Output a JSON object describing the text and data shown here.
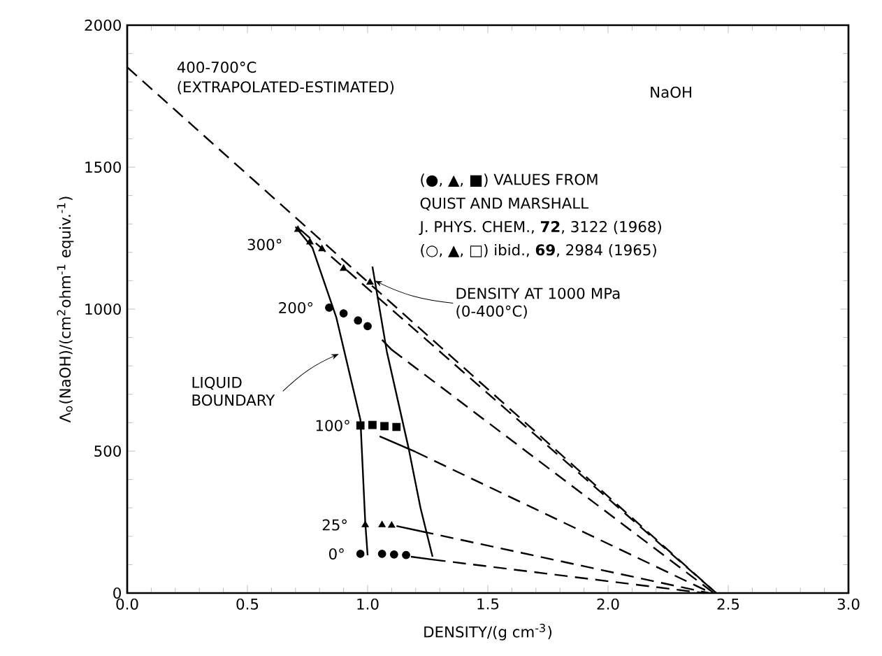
{
  "chart_data": {
    "type": "scatter",
    "xlabel": "DENSITY/(g cm$^{-3}$)",
    "ylabel": "Λ$_{o}$(NaOH)/(cm$^{2}$ohm$^{-1}$ equiv.$^{-1}$)",
    "xlim": [
      0,
      3.0
    ],
    "ylim": [
      0,
      2000
    ],
    "xticks": [
      {
        "value": 0,
        "label": "0.0"
      },
      {
        "value": 0.5,
        "label": "0.5"
      },
      {
        "value": 1,
        "label": "1.0"
      },
      {
        "value": 1.5,
        "label": "1.5"
      },
      {
        "value": 2,
        "label": "2.0"
      },
      {
        "value": 2.5,
        "label": "2.5"
      },
      {
        "value": 3,
        "label": "3.0"
      }
    ],
    "yticks": [
      0,
      500,
      1000,
      1500,
      2000
    ],
    "series": [
      {
        "marker": "circle",
        "color": "#000000",
        "x": [
          0.97,
          1.06,
          1.11,
          1.16
        ],
        "values": [
          138,
          138,
          136,
          134
        ]
      },
      {
        "marker": "triangle",
        "color": "#000000",
        "x": [
          0.99,
          1.06,
          1.1
        ],
        "values": [
          240,
          240,
          238
        ]
      },
      {
        "marker": "square",
        "color": "#000000",
        "x": [
          0.97,
          1.02,
          1.07,
          1.12
        ],
        "values": [
          590,
          592,
          588,
          585
        ]
      },
      {
        "marker": "circle",
        "color": "#000000",
        "x": [
          0.84,
          0.9,
          0.96,
          1.0
        ],
        "values": [
          1005,
          985,
          960,
          940
        ]
      },
      {
        "marker": "triangle",
        "color": "#000000",
        "x": [
          0.71,
          0.76,
          0.81,
          0.9,
          1.01
        ],
        "values": [
          1280,
          1236,
          1212,
          1143,
          1094
        ]
      },
      {
        "type": "line",
        "marker": "none",
        "line_style": "solid",
        "color": "#000000",
        "x": [
          1.18,
          1.27
        ],
        "values": [
          128,
          118
        ]
      },
      {
        "type": "line",
        "marker": "none",
        "line_style": "dashed",
        "color": "#000000",
        "x": [
          1.27,
          2.4
        ],
        "values": [
          118,
          0
        ]
      },
      {
        "type": "line",
        "marker": "none",
        "line_style": "solid",
        "color": "#000000",
        "x": [
          1.12,
          1.22
        ],
        "values": [
          236,
          218
        ]
      },
      {
        "type": "line",
        "marker": "none",
        "line_style": "dashed",
        "color": "#000000",
        "x": [
          1.22,
          2.42
        ],
        "values": [
          218,
          0
        ]
      },
      {
        "type": "line",
        "marker": "none",
        "line_style": "solid",
        "color": "#000000",
        "x": [
          1.05,
          1.2
        ],
        "values": [
          552,
          497
        ]
      },
      {
        "type": "line",
        "marker": "none",
        "line_style": "dashed",
        "color": "#000000",
        "x": [
          1.2,
          2.43
        ],
        "values": [
          497,
          0
        ]
      },
      {
        "type": "line",
        "marker": "none",
        "line_style": "solid",
        "color": "#000000",
        "x": [
          1.06,
          1.1
        ],
        "values": [
          892,
          857
        ]
      },
      {
        "type": "line",
        "marker": "none",
        "line_style": "dashed",
        "color": "#000000",
        "x": [
          1.1,
          2.44
        ],
        "values": [
          857,
          0
        ]
      },
      {
        "type": "line",
        "marker": "none",
        "line_style": "dashed",
        "color": "#000000",
        "x": [
          0.72,
          2.45
        ],
        "values": [
          1280,
          0
        ]
      },
      {
        "type": "line",
        "marker": "none",
        "line_style": "dashed",
        "color": "#000000",
        "x": [
          0,
          2.45
        ],
        "values": [
          1852,
          0
        ]
      },
      {
        "type": "line",
        "marker": "none",
        "line_style": "solid",
        "color": "#000000",
        "x": [
          0.7,
          0.77,
          0.87,
          0.97,
          0.99,
          1.0
        ],
        "values": [
          1290,
          1217,
          970,
          611,
          251,
          133
        ]
      },
      {
        "type": "line",
        "marker": "none",
        "line_style": "solid",
        "color": "#000000",
        "x": [
          1.02,
          1.08,
          1.17,
          1.22,
          1.27
        ],
        "values": [
          1150,
          850,
          512,
          300,
          128
        ]
      }
    ],
    "annotations": [
      "400-700°C",
      "(EXTRAPOLATED-ESTIMATED)",
      "NaOH",
      "(●, ▲, ■) VALUES FROM",
      "QUIST AND MARSHALL",
      "J. PHYS. CHEM., **72**, 3122 (1968)",
      "(○, ▲, □) ibid., **69**, 2984 (1965)",
      {
        "text": "300°",
        "x": 0.71,
        "y": 1280
      },
      {
        "text": "200°",
        "x": 0.84,
        "y": 1005
      },
      {
        "text": "100°",
        "x": 0.97,
        "y": 590
      },
      {
        "text": "25°",
        "x": 0.99,
        "y": 240
      },
      {
        "text": "0°",
        "x": 0.97,
        "y": 138
      },
      {
        "text": "LIQUID BOUNDARY",
        "x": 0.88,
        "y": 842
      },
      {
        "text": "DENSITY AT 1000 MPa (0-400°C)",
        "x": 1.03,
        "y": 1100
      }
    ]
  }
}
